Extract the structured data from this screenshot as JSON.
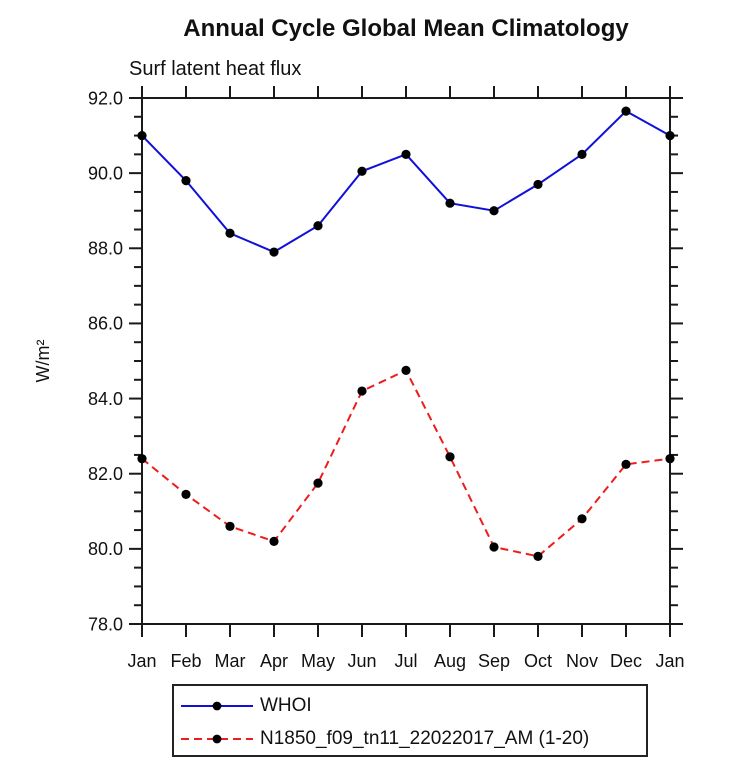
{
  "title": "Annual Cycle Global Mean Climatology",
  "subtitle": "Surf latent heat flux",
  "ylabel": "W/m²",
  "chart_data": {
    "type": "line",
    "x_categories": [
      "Jan",
      "Feb",
      "Mar",
      "Apr",
      "May",
      "Jun",
      "Jul",
      "Aug",
      "Sep",
      "Oct",
      "Nov",
      "Dec",
      "Jan"
    ],
    "ylim": [
      78.0,
      92.0
    ],
    "y_major_ticks": [
      78,
      80,
      82,
      84,
      86,
      88,
      90,
      92
    ],
    "y_tick_labels": [
      "78.0",
      "80.0",
      "82.0",
      "84.0",
      "86.0",
      "88.0",
      "90.0",
      "92.0"
    ],
    "y_minor_step": 0.5,
    "grid": false,
    "legend_position": "bottom",
    "axis_color": "#1a1a1a",
    "marker_color": "#000000",
    "series": [
      {
        "name": "WHOI",
        "style": "solid",
        "color": "#1010d8",
        "values": [
          91.0,
          89.8,
          88.4,
          87.9,
          88.6,
          90.05,
          90.5,
          89.2,
          89.0,
          89.7,
          90.5,
          91.65,
          91.0
        ]
      },
      {
        "name": "N1850_f09_tn11_22022017_AM (1-20)",
        "style": "dashed",
        "color": "#ee1c1c",
        "values": [
          82.4,
          81.45,
          80.6,
          80.2,
          81.75,
          84.2,
          84.75,
          82.45,
          80.05,
          79.8,
          80.8,
          82.25,
          82.4
        ]
      }
    ]
  }
}
